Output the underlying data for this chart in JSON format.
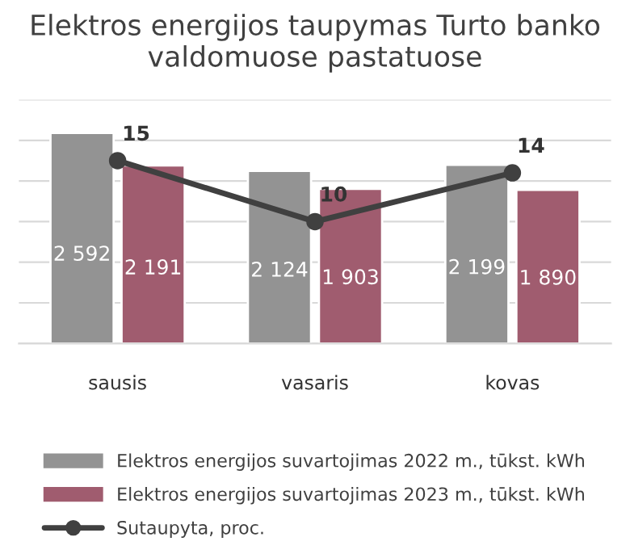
{
  "chart_data": {
    "type": "bar",
    "title": "Elektros energijos taupymas Turto banko valdomuose pastatuose",
    "categories": [
      "sausis",
      "vasaris",
      "kovas"
    ],
    "series": [
      {
        "name": "Elektros energijos suvartojimas 2022 m., tūkst. kWh",
        "color": "#939393",
        "values": [
          2592,
          2124,
          2199
        ],
        "value_labels": [
          "2 592",
          "2 124",
          "2 199"
        ]
      },
      {
        "name": "Elektros energijos suvartojimas 2023 m., tūkst. kWh",
        "color": "#a05c6f",
        "values": [
          2191,
          1903,
          1890
        ],
        "value_labels": [
          "2 191",
          "1 903",
          "1 890"
        ]
      },
      {
        "name": "Sutaupyta, proc.",
        "type": "line",
        "axis": "y2",
        "color": "#404040",
        "values": [
          15,
          10,
          14
        ],
        "marker": "circle",
        "value_labels": [
          "15",
          "10",
          "14"
        ]
      }
    ],
    "ylim": [
      0,
      3000
    ],
    "yticks": [
      {
        "value": 0,
        "label": null
      },
      {
        "value": 500,
        "label": null
      },
      {
        "value": 1000,
        "label": null
      },
      {
        "value": 1500,
        "label": null
      },
      {
        "value": 2000,
        "label": null
      },
      {
        "value": 2500,
        "label": null
      },
      {
        "value": 3000,
        "label": null
      }
    ],
    "y2lim": [
      0,
      20
    ],
    "grid": "y",
    "legend": "bottom",
    "tick_labels": "x"
  }
}
